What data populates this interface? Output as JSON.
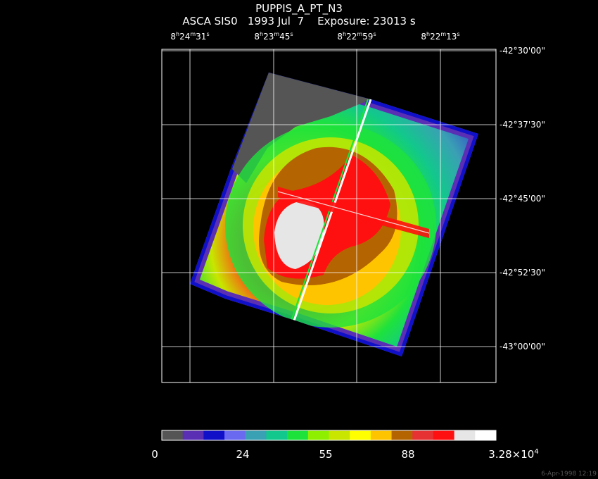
{
  "header": {
    "title": "PUPPIS_A_PT_N3",
    "subtitle": "ASCA SIS0   1993 Jul  7    Exposure: 23013 s"
  },
  "axes": {
    "ra_ticks": [
      {
        "h": "8",
        "m": "24",
        "s": "31"
      },
      {
        "h": "8",
        "m": "23",
        "s": "45"
      },
      {
        "h": "8",
        "m": "22",
        "s": "59"
      },
      {
        "h": "8",
        "m": "22",
        "s": "13"
      }
    ],
    "dec_ticks": [
      "-42°30'00\"",
      "-42°37'30\"",
      "-42°45'00\"",
      "-42°52'30\"",
      "-43°00'00\""
    ]
  },
  "colorbar": {
    "colors": [
      "#555555",
      "#5a2fb4",
      "#1010c8",
      "#6a6af0",
      "#3aa0b4",
      "#12c88c",
      "#1ee23c",
      "#8ef000",
      "#c8e600",
      "#ffff00",
      "#ffc400",
      "#b46400",
      "#e63232",
      "#ff1010",
      "#e6e6e6",
      "#ffffff"
    ],
    "labels": [
      "0",
      "24",
      "55",
      "88"
    ],
    "max_label": {
      "mantissa": "3.28×10",
      "exp": "4"
    }
  },
  "footer": {
    "timestamp": "6-Apr-1998 12:19"
  }
}
